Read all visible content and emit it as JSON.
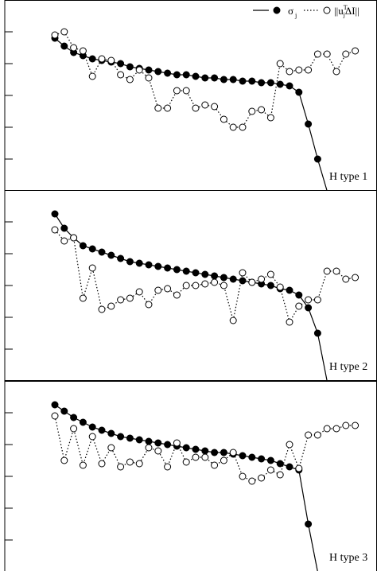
{
  "legend": {
    "sigma_symbol": "σ",
    "sigma_subscript": "j",
    "norm_prefix": "||u",
    "norm_sub": "j",
    "norm_sup": "T",
    "norm_suffix": "ΔI||"
  },
  "chart_data": [
    {
      "type": "line",
      "panel_label": "H type 1",
      "x": [
        1,
        2,
        3,
        4,
        5,
        6,
        7,
        8,
        9,
        10,
        11,
        12,
        13,
        14,
        15,
        16,
        17,
        18,
        19,
        20,
        21,
        22,
        23,
        24,
        25,
        26,
        27,
        28,
        29,
        30,
        31,
        32,
        33
      ],
      "ylim": [
        0,
        1
      ],
      "series": [
        {
          "name": "σj",
          "marker": "filled",
          "linestyle": "solid",
          "values": [
            0.86,
            0.81,
            0.77,
            0.75,
            0.73,
            0.72,
            0.71,
            0.7,
            0.68,
            0.67,
            0.66,
            0.65,
            0.64,
            0.63,
            0.63,
            0.62,
            0.61,
            0.61,
            0.6,
            0.6,
            0.59,
            0.59,
            0.58,
            0.58,
            0.57,
            0.56,
            0.52,
            0.32,
            0.1,
            -0.1,
            null,
            null,
            null
          ]
        },
        {
          "name": "||uj^T ΔI||",
          "marker": "open",
          "linestyle": "dotted",
          "values": [
            0.88,
            0.9,
            0.8,
            0.78,
            0.62,
            0.73,
            0.72,
            0.63,
            0.6,
            0.66,
            0.61,
            0.42,
            0.42,
            0.53,
            0.53,
            0.42,
            0.44,
            0.43,
            0.35,
            0.3,
            0.3,
            0.4,
            0.41,
            0.36,
            0.7,
            0.65,
            0.66,
            0.66,
            0.76,
            0.76,
            0.65,
            0.76,
            0.78
          ]
        }
      ]
    },
    {
      "type": "line",
      "panel_label": "H type 2",
      "x": [
        1,
        2,
        3,
        4,
        5,
        6,
        7,
        8,
        9,
        10,
        11,
        12,
        13,
        14,
        15,
        16,
        17,
        18,
        19,
        20,
        21,
        22,
        23,
        24,
        25,
        26,
        27,
        28,
        29,
        30,
        31,
        32,
        33
      ],
      "ylim": [
        0,
        1
      ],
      "series": [
        {
          "name": "σj",
          "marker": "filled",
          "linestyle": "solid",
          "values": [
            0.95,
            0.86,
            0.8,
            0.75,
            0.73,
            0.71,
            0.69,
            0.67,
            0.65,
            0.64,
            0.63,
            0.62,
            0.61,
            0.6,
            0.59,
            0.58,
            0.57,
            0.56,
            0.55,
            0.54,
            0.53,
            0.52,
            0.51,
            0.5,
            0.48,
            0.47,
            0.44,
            0.36,
            0.2,
            -0.1,
            null,
            null,
            null
          ]
        },
        {
          "name": "||uj^T ΔI||",
          "marker": "open",
          "linestyle": "dotted",
          "values": [
            0.85,
            0.78,
            0.8,
            0.42,
            0.61,
            0.35,
            0.37,
            0.41,
            0.42,
            0.46,
            0.38,
            0.47,
            0.48,
            0.44,
            0.5,
            0.5,
            0.51,
            0.52,
            0.5,
            0.28,
            0.58,
            0.52,
            0.54,
            0.57,
            0.49,
            0.27,
            0.37,
            0.41,
            0.41,
            0.59,
            0.59,
            0.54,
            0.55
          ]
        }
      ]
    },
    {
      "type": "line",
      "panel_label": "H type 3",
      "x": [
        1,
        2,
        3,
        4,
        5,
        6,
        7,
        8,
        9,
        10,
        11,
        12,
        13,
        14,
        15,
        16,
        17,
        18,
        19,
        20,
        21,
        22,
        23,
        24,
        25,
        26,
        27,
        28,
        29,
        30,
        31,
        32,
        33
      ],
      "ylim": [
        0,
        1
      ],
      "series": [
        {
          "name": "σj",
          "marker": "filled",
          "linestyle": "solid",
          "values": [
            0.95,
            0.91,
            0.87,
            0.84,
            0.81,
            0.79,
            0.77,
            0.75,
            0.74,
            0.73,
            0.72,
            0.71,
            0.7,
            0.69,
            0.68,
            0.67,
            0.66,
            0.65,
            0.65,
            0.64,
            0.63,
            0.62,
            0.61,
            0.6,
            0.58,
            0.56,
            0.54,
            0.2,
            -0.1,
            null,
            null,
            null,
            null
          ]
        },
        {
          "name": "||uj^T ΔI||",
          "marker": "open",
          "linestyle": "dotted",
          "values": [
            0.88,
            0.6,
            0.8,
            0.57,
            0.75,
            0.58,
            0.68,
            0.56,
            0.59,
            0.58,
            0.68,
            0.66,
            0.56,
            0.71,
            0.59,
            0.62,
            0.62,
            0.57,
            0.6,
            0.65,
            0.5,
            0.47,
            0.49,
            0.54,
            0.51,
            0.7,
            0.55,
            0.76,
            0.76,
            0.8,
            0.8,
            0.82,
            0.82
          ]
        }
      ]
    }
  ]
}
